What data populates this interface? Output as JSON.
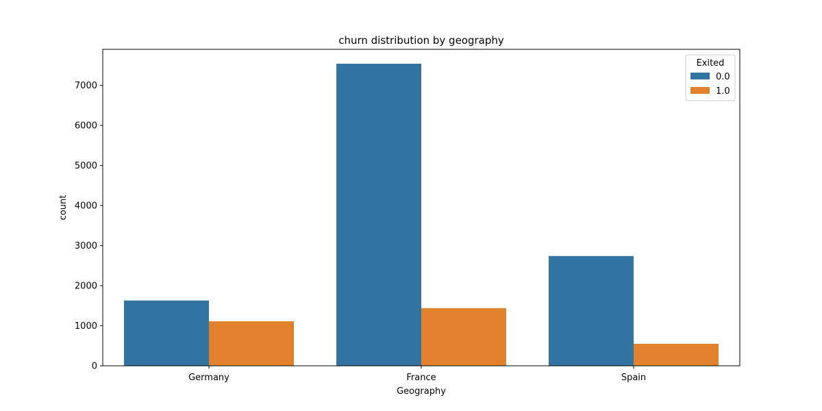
{
  "chart_data": {
    "type": "bar",
    "title": "churn distribution by geography",
    "xlabel": "Geography",
    "ylabel": "count",
    "categories": [
      "Germany",
      "France",
      "Spain"
    ],
    "series": [
      {
        "name": "0.0",
        "values": [
          1630,
          7540,
          2740
        ],
        "color": "#3274a1"
      },
      {
        "name": "1.0",
        "values": [
          1110,
          1440,
          550
        ],
        "color": "#e1812c"
      }
    ],
    "ylim": [
      0,
      7900
    ],
    "yticks": [
      0,
      1000,
      2000,
      3000,
      4000,
      5000,
      6000,
      7000
    ],
    "legend": {
      "title": "Exited",
      "placement": "top-right"
    },
    "grid": false
  }
}
